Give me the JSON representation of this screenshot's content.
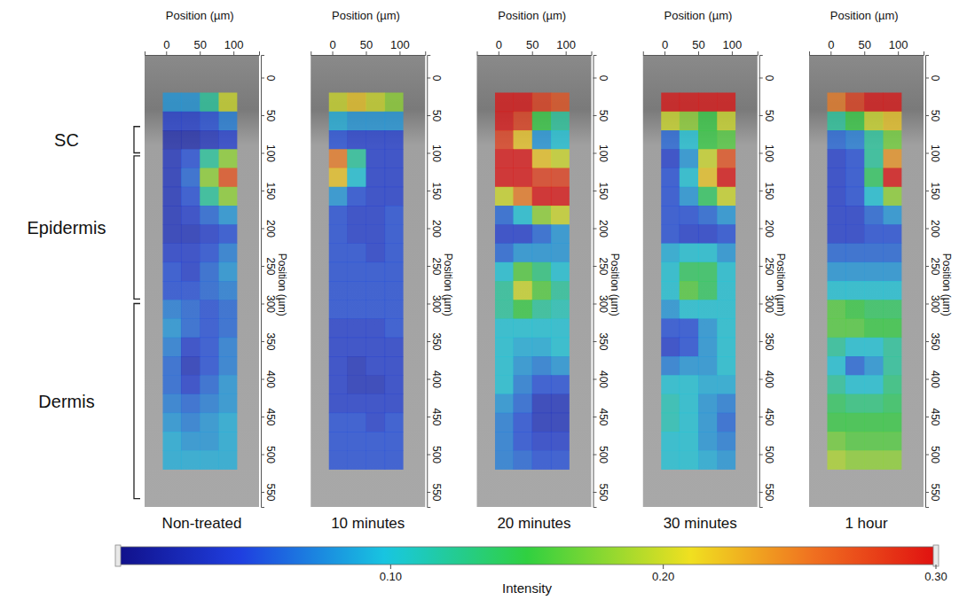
{
  "chart_data": {
    "type": "heatmap",
    "xlabel": "Position (µm)",
    "ylabel": "Position (µm)",
    "xlim": [
      -32,
      138
    ],
    "xticks": [
      0,
      50,
      100
    ],
    "ylim": [
      -30,
      570
    ],
    "yticks": [
      0,
      50,
      100,
      150,
      200,
      250,
      300,
      350,
      400,
      450,
      500,
      550
    ],
    "x_bins": [
      -5,
      22,
      50,
      78,
      105
    ],
    "y_bins": [
      20,
      45,
      70,
      95,
      120,
      145,
      170,
      195,
      220,
      245,
      270,
      295,
      320,
      345,
      370,
      395,
      420,
      445,
      470,
      495,
      520
    ],
    "regions": [
      {
        "label": "SC",
        "range": [
          65,
          100
        ]
      },
      {
        "label": "Epidermis",
        "range": [
          104,
          294
        ]
      },
      {
        "label": "Dermis",
        "range": [
          300,
          559
        ]
      }
    ],
    "colorbar": {
      "label": "Intensity",
      "range": [
        0,
        0.3
      ],
      "ticks": [
        {
          "value": 0.1,
          "label": "0.10"
        },
        {
          "value": 0.2,
          "label": "0.20"
        },
        {
          "value": 0.3,
          "label": "0.30"
        }
      ]
    },
    "panels": [
      {
        "title": "Non-treated",
        "values": [
          [
            0.08,
            0.08,
            0.12,
            0.2
          ],
          [
            0.04,
            0.04,
            0.05,
            0.07
          ],
          [
            0.02,
            0.02,
            0.03,
            0.04
          ],
          [
            0.03,
            0.05,
            0.12,
            0.18
          ],
          [
            0.03,
            0.06,
            0.18,
            0.27
          ],
          [
            0.03,
            0.05,
            0.12,
            0.18
          ],
          [
            0.03,
            0.04,
            0.06,
            0.08
          ],
          [
            0.03,
            0.03,
            0.04,
            0.05
          ],
          [
            0.04,
            0.04,
            0.05,
            0.07
          ],
          [
            0.05,
            0.04,
            0.06,
            0.08
          ],
          [
            0.05,
            0.05,
            0.06,
            0.07
          ],
          [
            0.07,
            0.06,
            0.05,
            0.06
          ],
          [
            0.08,
            0.06,
            0.05,
            0.06
          ],
          [
            0.07,
            0.04,
            0.05,
            0.07
          ],
          [
            0.06,
            0.03,
            0.05,
            0.07
          ],
          [
            0.06,
            0.04,
            0.06,
            0.08
          ],
          [
            0.07,
            0.06,
            0.07,
            0.08
          ],
          [
            0.08,
            0.07,
            0.08,
            0.09
          ],
          [
            0.09,
            0.08,
            0.08,
            0.09
          ],
          [
            0.09,
            0.09,
            0.09,
            0.09
          ]
        ]
      },
      {
        "title": "10 minutes",
        "values": [
          [
            0.2,
            0.22,
            0.2,
            0.18
          ],
          [
            0.09,
            0.08,
            0.08,
            0.08
          ],
          [
            0.05,
            0.04,
            0.04,
            0.04
          ],
          [
            0.25,
            0.12,
            0.04,
            0.04
          ],
          [
            0.22,
            0.1,
            0.04,
            0.04
          ],
          [
            0.08,
            0.05,
            0.04,
            0.04
          ],
          [
            0.05,
            0.04,
            0.04,
            0.05
          ],
          [
            0.05,
            0.04,
            0.04,
            0.05
          ],
          [
            0.05,
            0.05,
            0.04,
            0.05
          ],
          [
            0.05,
            0.05,
            0.05,
            0.05
          ],
          [
            0.05,
            0.05,
            0.05,
            0.05
          ],
          [
            0.05,
            0.05,
            0.05,
            0.05
          ],
          [
            0.04,
            0.04,
            0.04,
            0.05
          ],
          [
            0.04,
            0.04,
            0.04,
            0.04
          ],
          [
            0.04,
            0.03,
            0.04,
            0.04
          ],
          [
            0.04,
            0.03,
            0.03,
            0.04
          ],
          [
            0.04,
            0.04,
            0.04,
            0.04
          ],
          [
            0.05,
            0.05,
            0.04,
            0.05
          ],
          [
            0.05,
            0.05,
            0.05,
            0.05
          ],
          [
            0.05,
            0.05,
            0.05,
            0.05
          ]
        ]
      },
      {
        "title": "20 minutes",
        "values": [
          [
            0.3,
            0.3,
            0.28,
            0.27
          ],
          [
            0.3,
            0.28,
            0.15,
            0.12
          ],
          [
            0.28,
            0.22,
            0.08,
            0.1
          ],
          [
            0.3,
            0.3,
            0.22,
            0.2
          ],
          [
            0.3,
            0.3,
            0.28,
            0.28
          ],
          [
            0.2,
            0.25,
            0.3,
            0.3
          ],
          [
            0.06,
            0.1,
            0.18,
            0.2
          ],
          [
            0.04,
            0.04,
            0.06,
            0.08
          ],
          [
            0.06,
            0.08,
            0.08,
            0.08
          ],
          [
            0.1,
            0.16,
            0.13,
            0.1
          ],
          [
            0.12,
            0.2,
            0.16,
            0.12
          ],
          [
            0.12,
            0.15,
            0.12,
            0.11
          ],
          [
            0.1,
            0.1,
            0.1,
            0.1
          ],
          [
            0.1,
            0.09,
            0.09,
            0.1
          ],
          [
            0.1,
            0.08,
            0.07,
            0.08
          ],
          [
            0.1,
            0.07,
            0.05,
            0.05
          ],
          [
            0.08,
            0.06,
            0.03,
            0.03
          ],
          [
            0.07,
            0.05,
            0.03,
            0.03
          ],
          [
            0.07,
            0.05,
            0.04,
            0.04
          ],
          [
            0.07,
            0.06,
            0.05,
            0.05
          ]
        ]
      },
      {
        "title": "30 minutes",
        "values": [
          [
            0.3,
            0.3,
            0.3,
            0.3
          ],
          [
            0.2,
            0.18,
            0.15,
            0.2
          ],
          [
            0.06,
            0.1,
            0.15,
            0.16
          ],
          [
            0.04,
            0.08,
            0.2,
            0.27
          ],
          [
            0.05,
            0.1,
            0.22,
            0.3
          ],
          [
            0.05,
            0.08,
            0.14,
            0.2
          ],
          [
            0.05,
            0.05,
            0.06,
            0.08
          ],
          [
            0.05,
            0.04,
            0.04,
            0.05
          ],
          [
            0.09,
            0.1,
            0.1,
            0.08
          ],
          [
            0.1,
            0.14,
            0.14,
            0.1
          ],
          [
            0.1,
            0.16,
            0.14,
            0.1
          ],
          [
            0.08,
            0.1,
            0.1,
            0.1
          ],
          [
            0.05,
            0.05,
            0.08,
            0.1
          ],
          [
            0.04,
            0.05,
            0.08,
            0.1
          ],
          [
            0.07,
            0.08,
            0.08,
            0.1
          ],
          [
            0.1,
            0.1,
            0.09,
            0.09
          ],
          [
            0.11,
            0.1,
            0.08,
            0.07
          ],
          [
            0.11,
            0.1,
            0.08,
            0.06
          ],
          [
            0.1,
            0.1,
            0.08,
            0.07
          ],
          [
            0.1,
            0.1,
            0.09,
            0.08
          ]
        ]
      },
      {
        "title": "1 hour",
        "values": [
          [
            0.25,
            0.28,
            0.3,
            0.3
          ],
          [
            0.12,
            0.15,
            0.2,
            0.22
          ],
          [
            0.06,
            0.07,
            0.12,
            0.17
          ],
          [
            0.04,
            0.05,
            0.12,
            0.24
          ],
          [
            0.04,
            0.05,
            0.14,
            0.3
          ],
          [
            0.04,
            0.05,
            0.1,
            0.18
          ],
          [
            0.04,
            0.04,
            0.06,
            0.08
          ],
          [
            0.04,
            0.04,
            0.05,
            0.05
          ],
          [
            0.06,
            0.06,
            0.06,
            0.06
          ],
          [
            0.08,
            0.08,
            0.08,
            0.08
          ],
          [
            0.1,
            0.1,
            0.1,
            0.1
          ],
          [
            0.16,
            0.15,
            0.14,
            0.14
          ],
          [
            0.16,
            0.16,
            0.15,
            0.15
          ],
          [
            0.12,
            0.1,
            0.1,
            0.12
          ],
          [
            0.1,
            0.06,
            0.08,
            0.12
          ],
          [
            0.12,
            0.1,
            0.1,
            0.13
          ],
          [
            0.14,
            0.13,
            0.13,
            0.14
          ],
          [
            0.15,
            0.15,
            0.15,
            0.15
          ],
          [
            0.17,
            0.16,
            0.16,
            0.16
          ],
          [
            0.19,
            0.18,
            0.18,
            0.18
          ]
        ]
      }
    ]
  }
}
